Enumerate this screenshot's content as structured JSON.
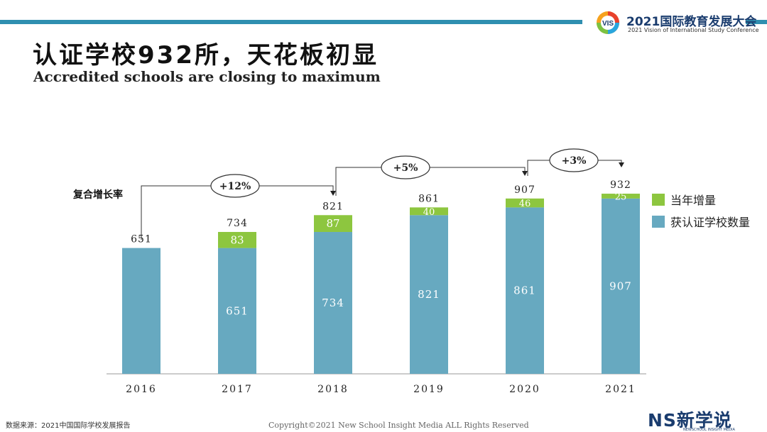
{
  "header": {
    "conference_title": "2021国际教育发展大会",
    "conference_subtitle": "2021 Vision of International Study Conference",
    "badge_text": "VIS"
  },
  "title": {
    "cn": "认证学校932所，天花板初显",
    "en": "Accredited schools are closing to maximum"
  },
  "chart_data": {
    "type": "bar",
    "stacked": true,
    "categories": [
      "2016",
      "2017",
      "2018",
      "2019",
      "2020",
      "2021"
    ],
    "series": [
      {
        "name": "获认证学校数量",
        "values": [
          651,
          651,
          734,
          821,
          861,
          907
        ],
        "color": "#67a9c0"
      },
      {
        "name": "当年增量",
        "values": [
          0,
          83,
          87,
          40,
          46,
          25
        ],
        "color": "#8dc63f"
      }
    ],
    "inner_labels": [
      "",
      "651",
      "734",
      "821",
      "861",
      "907"
    ],
    "increment_labels": [
      "",
      "83",
      "87",
      "40",
      "46",
      "25"
    ],
    "totals": [
      651,
      734,
      821,
      861,
      907,
      932
    ],
    "growth_label": "复合增长率",
    "growth_annotations": [
      {
        "from": "2016",
        "to": "2018",
        "label": "+12%"
      },
      {
        "from": "2018",
        "to": "2020",
        "label": "+5%"
      },
      {
        "from": "2020",
        "to": "2021",
        "label": "+3%"
      }
    ],
    "ylim": [
      0,
      1000
    ],
    "legend_position": "right",
    "grid": false
  },
  "footer": {
    "source": "数据来源：2021中国国际学校发展报告",
    "copyright": "Copyright©2021 New School Insight Media ALL Rights Reserved",
    "brand": "NS新学说",
    "brand_sub": "NEWSCHOOL INSIGHT MEDIA"
  }
}
